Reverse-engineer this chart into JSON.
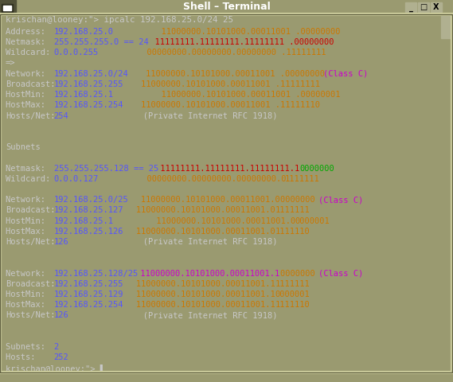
{
  "title": "Shell – Terminal",
  "window_bg": "#9a9a70",
  "title_bg": "#787858",
  "title_fg": "#ffffff",
  "terminal_bg": "#000000",
  "border_color": "#c8c8a0",
  "button_bg": "#b0b090",
  "scrollbar_bg": "#808060",
  "cmd_line": "krischan@looney:\"> ipcalc 192.168.25.0/24 25",
  "cmd_color": "#c8c8c8",
  "lines": [
    [
      [
        "Address:  ",
        "#c8c8c8"
      ],
      [
        "192.168.25.0",
        "#5555ff"
      ],
      [
        "          11000000.10101000.00011001 .00000000",
        "#cc7700"
      ]
    ],
    [
      [
        "Netmask:  ",
        "#c8c8c8"
      ],
      [
        "255.255.255.0 == 24",
        "#5555ff"
      ],
      [
        "  11111111.11111111.11111111 .00000000",
        "#cc0000"
      ]
    ],
    [
      [
        "Wildcard: ",
        "#c8c8c8"
      ],
      [
        "0.0.0.255",
        "#5555ff"
      ],
      [
        "          00000000.00000000.00000000 .11111111",
        "#cc7700"
      ]
    ],
    [
      [
        "=>",
        "#c8c8c8"
      ]
    ],
    [
      [
        "Network:  ",
        "#c8c8c8"
      ],
      [
        "192.168.25.0/24",
        "#5555ff"
      ],
      [
        "    11000000.10101000.00011001 .00000000 ",
        "#cc7700"
      ],
      [
        "(Class C)",
        "#cc00cc"
      ]
    ],
    [
      [
        "Broadcast:",
        "#c8c8c8"
      ],
      [
        "192.168.25.255",
        "#5555ff"
      ],
      [
        "    11000000.10101000.00011001 .11111111",
        "#cc7700"
      ]
    ],
    [
      [
        "HostMin:  ",
        "#c8c8c8"
      ],
      [
        "192.168.25.1",
        "#5555ff"
      ],
      [
        "          11000000.10101000.00011001 .00000001",
        "#cc7700"
      ]
    ],
    [
      [
        "HostMax:  ",
        "#c8c8c8"
      ],
      [
        "192.168.25.254",
        "#5555ff"
      ],
      [
        "    11000000.10101000.00011001 .11111110",
        "#cc7700"
      ]
    ],
    [
      [
        "Hosts/Net:",
        "#c8c8c8"
      ],
      [
        "254",
        "#5555ff"
      ],
      [
        "               (Private Internet RFC 1918)",
        "#c8c8c8"
      ]
    ],
    [
      [
        "",
        "#c8c8c8"
      ]
    ],
    [
      [
        "",
        "#c8c8c8"
      ]
    ],
    [
      [
        "Subnets",
        "#c8c8c8"
      ]
    ],
    [
      [
        "",
        "#c8c8c8"
      ]
    ],
    [
      [
        "Netmask:  ",
        "#c8c8c8"
      ],
      [
        "255.255.255.128 == 25",
        "#5555ff"
      ],
      [
        " 11111111.11111111.11111111.1 ",
        "#cc0000"
      ],
      [
        "0000000",
        "#00aa00"
      ]
    ],
    [
      [
        "Wildcard: ",
        "#c8c8c8"
      ],
      [
        "0.0.0.127",
        "#5555ff"
      ],
      [
        "          00000000.00000000.00000000.0 ",
        "#cc7700"
      ],
      [
        "1111111",
        "#cc7700"
      ]
    ],
    [
      [
        "",
        "#c8c8c8"
      ]
    ],
    [
      [
        "Network:  ",
        "#c8c8c8"
      ],
      [
        "192.168.25.0/25",
        "#5555ff"
      ],
      [
        "   11000000.10101000.00011001.0 ",
        "#cc7700"
      ],
      [
        "0000000 ",
        "#cc7700"
      ],
      [
        "(Class C)",
        "#cc00cc"
      ]
    ],
    [
      [
        "Broadcast:",
        "#c8c8c8"
      ],
      [
        "192.168.25.127",
        "#5555ff"
      ],
      [
        "   11000000.10101000.00011001.0 ",
        "#cc7700"
      ],
      [
        "1111111",
        "#cc7700"
      ]
    ],
    [
      [
        "HostMin:  ",
        "#c8c8c8"
      ],
      [
        "192.168.25.1",
        "#5555ff"
      ],
      [
        "         11000000.10101000.00011001.0 ",
        "#cc7700"
      ],
      [
        "0000001",
        "#cc7700"
      ]
    ],
    [
      [
        "HostMax:  ",
        "#c8c8c8"
      ],
      [
        "192.168.25.126",
        "#5555ff"
      ],
      [
        "   11000000.10101000.00011001.0 ",
        "#cc7700"
      ],
      [
        "1111110",
        "#cc7700"
      ]
    ],
    [
      [
        "Hosts/Net:",
        "#c8c8c8"
      ],
      [
        "126",
        "#5555ff"
      ],
      [
        "               (Private Internet RFC 1918)",
        "#c8c8c8"
      ]
    ],
    [
      [
        "",
        "#c8c8c8"
      ]
    ],
    [
      [
        "",
        "#c8c8c8"
      ]
    ],
    [
      [
        "Network:  ",
        "#c8c8c8"
      ],
      [
        "192.168.25.128/25",
        "#5555ff"
      ],
      [
        " 11000000.10101000.00011001.1 ",
        "#cc00cc"
      ],
      [
        "0000000 ",
        "#cc7700"
      ],
      [
        "(Class C)",
        "#cc00cc"
      ]
    ],
    [
      [
        "Broadcast:",
        "#c8c8c8"
      ],
      [
        "192.168.25.255",
        "#5555ff"
      ],
      [
        "   11000000.10101000.00011001.1 ",
        "#cc7700"
      ],
      [
        "1111111",
        "#cc7700"
      ]
    ],
    [
      [
        "HostMin:  ",
        "#c8c8c8"
      ],
      [
        "192.168.25.129",
        "#5555ff"
      ],
      [
        "   11000000.10101000.00011001.1 ",
        "#cc7700"
      ],
      [
        "0000001",
        "#cc7700"
      ]
    ],
    [
      [
        "HostMax:  ",
        "#c8c8c8"
      ],
      [
        "192.168.25.254",
        "#5555ff"
      ],
      [
        "   11000000.10101000.00011001.1 ",
        "#cc7700"
      ],
      [
        "1111110",
        "#cc7700"
      ]
    ],
    [
      [
        "Hosts/Net:",
        "#c8c8c8"
      ],
      [
        "126",
        "#5555ff"
      ],
      [
        "               (Private Internet RFC 1918)",
        "#c8c8c8"
      ]
    ],
    [
      [
        "",
        "#c8c8c8"
      ]
    ],
    [
      [
        "",
        "#c8c8c8"
      ]
    ],
    [
      [
        "Subnets:  ",
        "#c8c8c8"
      ],
      [
        "2",
        "#5555ff"
      ]
    ],
    [
      [
        "Hosts:    ",
        "#c8c8c8"
      ],
      [
        "252",
        "#5555ff"
      ]
    ],
    [
      [
        "krischan@looney:\"> ▌",
        "#c8c8c8"
      ]
    ]
  ],
  "fig_w": 5.69,
  "fig_h": 4.8,
  "dpi": 100
}
